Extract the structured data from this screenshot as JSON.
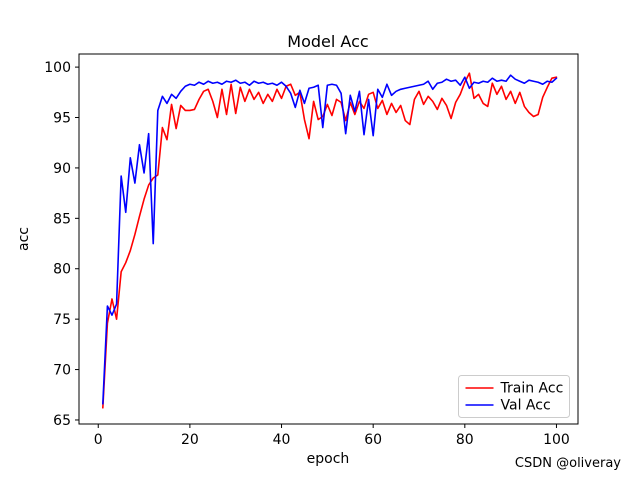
{
  "figure": {
    "background": "#ffffff"
  },
  "watermark": {
    "text": "CSDN @oliveray",
    "color": "#b0b0b0"
  },
  "chart_data": {
    "type": "line",
    "title": "Model Acc",
    "xlabel": "epoch",
    "ylabel": "acc",
    "x_start": 1,
    "x_end": 100,
    "xlim": [
      -4.2,
      104.7
    ],
    "ylim": [
      64.6,
      101.3
    ],
    "x_ticks": [
      0,
      20,
      40,
      60,
      80,
      100
    ],
    "y_ticks": [
      65,
      70,
      75,
      80,
      85,
      90,
      95,
      100
    ],
    "grid": false,
    "legend": {
      "position": "lower right",
      "entries": [
        "Train Acc",
        "Val Acc"
      ]
    },
    "series": [
      {
        "name": "Train Acc",
        "color": "#ff0000",
        "values": [
          66.2,
          74.6,
          77.0,
          75.0,
          79.7,
          80.6,
          81.8,
          83.4,
          85.2,
          86.9,
          88.3,
          89.0,
          89.3,
          94.0,
          92.8,
          96.3,
          93.9,
          96.2,
          95.7,
          95.7,
          95.8,
          96.8,
          97.6,
          97.8,
          96.6,
          95.0,
          97.8,
          95.3,
          98.3,
          95.4,
          98.0,
          96.6,
          97.8,
          96.8,
          97.5,
          96.4,
          97.3,
          96.6,
          97.8,
          96.9,
          98.1,
          98.3,
          97.2,
          97.5,
          94.8,
          92.9,
          96.6,
          94.8,
          95.1,
          96.3,
          95.2,
          96.8,
          96.5,
          94.7,
          96.5,
          95.3,
          96.6,
          95.9,
          97.3,
          97.5,
          95.9,
          96.7,
          95.3,
          96.4,
          95.5,
          96.2,
          94.7,
          94.3,
          96.8,
          97.6,
          96.3,
          97.1,
          96.6,
          95.8,
          96.9,
          96.2,
          94.9,
          96.5,
          97.3,
          98.5,
          99.4,
          96.9,
          97.3,
          96.4,
          96.1,
          98.4,
          97.3,
          98.1,
          96.8,
          97.6,
          96.4,
          97.5,
          96.1,
          95.5,
          95.1,
          95.3,
          97.0,
          98.0,
          98.9,
          99.0
        ]
      },
      {
        "name": "Val Acc",
        "color": "#0000ff",
        "values": [
          66.6,
          76.3,
          75.4,
          76.5,
          89.2,
          85.6,
          91.0,
          88.5,
          92.3,
          89.5,
          93.4,
          82.5,
          95.7,
          97.1,
          96.4,
          97.3,
          96.9,
          97.6,
          98.1,
          98.3,
          98.2,
          98.5,
          98.3,
          98.6,
          98.4,
          98.5,
          98.3,
          98.6,
          98.5,
          98.7,
          98.4,
          98.5,
          98.2,
          98.6,
          98.4,
          98.5,
          98.3,
          98.4,
          98.2,
          98.5,
          98.1,
          97.4,
          96.0,
          97.7,
          96.4,
          97.9,
          98.0,
          98.2,
          94.0,
          98.2,
          98.3,
          98.2,
          97.4,
          93.4,
          97.2,
          95.6,
          97.6,
          93.3,
          96.8,
          93.2,
          97.8,
          97.0,
          98.3,
          97.2,
          97.6,
          97.8,
          97.9,
          98.0,
          98.1,
          98.2,
          98.3,
          98.6,
          97.8,
          98.4,
          98.5,
          98.8,
          98.6,
          98.7,
          98.2,
          99.0,
          97.9,
          98.5,
          98.4,
          98.6,
          98.5,
          98.9,
          98.6,
          98.7,
          98.6,
          99.2,
          98.8,
          98.6,
          98.4,
          98.7,
          98.6,
          98.5,
          98.3,
          98.6,
          98.5,
          98.9
        ]
      }
    ]
  }
}
